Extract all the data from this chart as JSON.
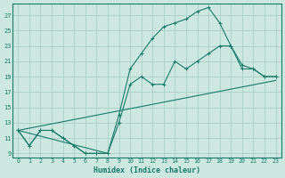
{
  "xlabel": "Humidex (Indice chaleur)",
  "bg_color": "#cce8e0",
  "grid_color": "#aacfc8",
  "line_color": "#1a7a6a",
  "xlim": [
    -0.5,
    23.5
  ],
  "ylim": [
    8.5,
    28.5
  ],
  "xticks": [
    0,
    1,
    2,
    3,
    4,
    5,
    6,
    7,
    8,
    9,
    10,
    11,
    12,
    13,
    14,
    15,
    16,
    17,
    18,
    19,
    20,
    21,
    22,
    23
  ],
  "yticks": [
    9,
    11,
    13,
    15,
    17,
    19,
    21,
    23,
    25,
    27
  ],
  "series": [
    {
      "x": [
        0,
        1,
        2,
        3,
        4,
        5,
        6,
        7,
        8,
        9,
        10,
        11,
        12,
        13,
        14,
        15,
        16,
        17,
        18,
        19,
        20,
        21,
        22,
        23
      ],
      "y": [
        12,
        10,
        12,
        12,
        11,
        10,
        9,
        9,
        9,
        14,
        20,
        22,
        24,
        25.5,
        26,
        26.5,
        27.5,
        28,
        26,
        23,
        20,
        20,
        19,
        19
      ]
    },
    {
      "x": [
        0,
        1,
        2,
        3,
        4,
        5,
        6,
        7,
        8,
        9,
        10,
        11,
        12,
        13,
        14,
        15,
        16,
        17,
        18,
        19,
        20,
        21,
        22,
        23
      ],
      "y": [
        12,
        10,
        12,
        12,
        11,
        10,
        9,
        9,
        9,
        13,
        18,
        19,
        18,
        18,
        21,
        20,
        21,
        22,
        23,
        23,
        20.5,
        20,
        19,
        19
      ]
    },
    {
      "x": [
        0,
        23
      ],
      "y": [
        12,
        18.5
      ]
    },
    {
      "x": [
        0,
        8
      ],
      "y": [
        12,
        9
      ]
    }
  ],
  "figsize": [
    3.2,
    2.0
  ],
  "dpi": 100
}
